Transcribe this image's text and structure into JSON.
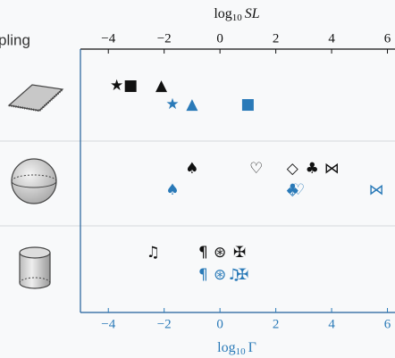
{
  "chart_data": {
    "type": "scatter",
    "row_header": "pling",
    "top_axis": {
      "label": "log",
      "label_sub": "10",
      "label_var": "SL",
      "color": "#111111"
    },
    "bottom_axis": {
      "label": "log",
      "label_sub": "10",
      "label_var": "Γ",
      "color": "#2a7ab8"
    },
    "xlim": [
      -5,
      6.3
    ],
    "xticks": [
      {
        "value": -4,
        "label": "−4"
      },
      {
        "value": -2,
        "label": "−2"
      },
      0,
      2,
      4,
      6
    ],
    "rows": [
      {
        "sl": [
          {
            "symbol": "★",
            "x": -3.7
          },
          {
            "symbol": "■",
            "x": -3.2
          },
          {
            "symbol": "▲",
            "x": -2.1
          }
        ],
        "gamma": [
          {
            "symbol": "★",
            "x": -1.7
          },
          {
            "symbol": "▲",
            "x": -1.0
          },
          {
            "symbol": "■",
            "x": 1.0
          }
        ]
      },
      {
        "sl": [
          {
            "symbol": "♠",
            "x": -1.0
          },
          {
            "symbol": "♡",
            "x": 1.3
          },
          {
            "symbol": "◇",
            "x": 2.6
          },
          {
            "symbol": "♣",
            "x": 3.3
          },
          {
            "symbol": "⋈",
            "x": 4.0
          }
        ],
        "gamma": [
          {
            "symbol": "♠",
            "x": -1.7
          },
          {
            "symbol": "♡",
            "x": 2.8
          },
          {
            "symbol": "◇",
            "x": 2.6
          },
          {
            "symbol": "♣",
            "x": 2.6
          },
          {
            "symbol": "⋈",
            "x": 5.6
          }
        ]
      },
      {
        "sl": [
          {
            "symbol": "♫",
            "x": -2.4
          },
          {
            "symbol": "¶",
            "x": -0.6
          },
          {
            "symbol": "⊛",
            "x": 0.0
          },
          {
            "symbol": "✠",
            "x": 0.7
          }
        ],
        "gamma": [
          {
            "symbol": "¶",
            "x": -0.6
          },
          {
            "symbol": "⊛",
            "x": 0.0
          },
          {
            "symbol": "♫",
            "x": 0.5
          },
          {
            "symbol": "✠",
            "x": 0.8
          }
        ]
      }
    ]
  }
}
